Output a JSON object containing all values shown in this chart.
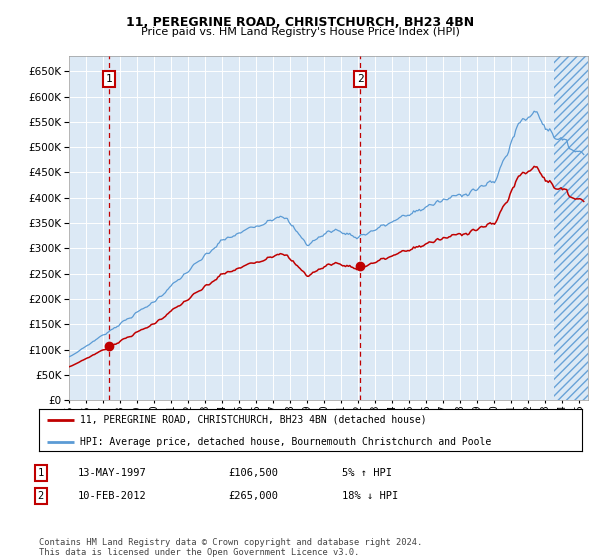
{
  "title1": "11, PEREGRINE ROAD, CHRISTCHURCH, BH23 4BN",
  "title2": "Price paid vs. HM Land Registry's House Price Index (HPI)",
  "ylim": [
    0,
    680000
  ],
  "yticks": [
    0,
    50000,
    100000,
    150000,
    200000,
    250000,
    300000,
    350000,
    400000,
    450000,
    500000,
    550000,
    600000,
    650000
  ],
  "xlim_start": 1995.0,
  "xlim_end": 2025.5,
  "bg_color": "#dce9f5",
  "grid_color": "#ffffff",
  "hpi_color": "#5b9bd5",
  "price_color": "#c00000",
  "sale1_x": 1997.36,
  "sale1_y": 106500,
  "sale1_label": "1",
  "sale1_date": "13-MAY-1997",
  "sale1_price": "£106,500",
  "sale1_hpi": "5% ↑ HPI",
  "sale2_x": 2012.11,
  "sale2_y": 265000,
  "sale2_label": "2",
  "sale2_date": "10-FEB-2012",
  "sale2_price": "£265,000",
  "sale2_hpi": "18% ↓ HPI",
  "legend_line1": "11, PEREGRINE ROAD, CHRISTCHURCH, BH23 4BN (detached house)",
  "legend_line2": "HPI: Average price, detached house, Bournemouth Christchurch and Poole",
  "footnote": "Contains HM Land Registry data © Crown copyright and database right 2024.\nThis data is licensed under the Open Government Licence v3.0.",
  "xtick_years": [
    1995,
    1996,
    1997,
    1998,
    1999,
    2000,
    2001,
    2002,
    2003,
    2004,
    2005,
    2006,
    2007,
    2008,
    2009,
    2010,
    2011,
    2012,
    2013,
    2014,
    2015,
    2016,
    2017,
    2018,
    2019,
    2020,
    2021,
    2022,
    2023,
    2024,
    2025
  ],
  "hatch_start": 2023.5
}
